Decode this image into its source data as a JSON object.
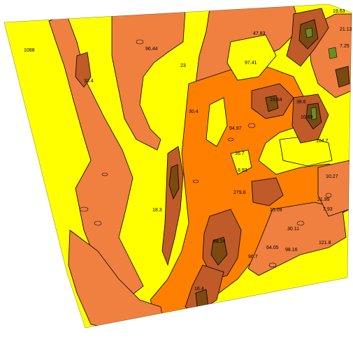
{
  "colors": {
    "background": "#ffffff",
    "low": "#ffff00",
    "mid": "#f08040",
    "high": "#ff7f00",
    "higher": "#c05a28",
    "peak": "#7a4a10",
    "accent_green": "#6b8e23",
    "contour": "#000000"
  },
  "contour_labels": [
    "1088",
    "96.44",
    "33.4",
    "23",
    "47.83",
    "97.41",
    "19.63",
    "21.13",
    "7.25",
    "30.4",
    "94.97",
    "16.7",
    "8.93",
    "279.8",
    "10.69",
    "104.7",
    "19.64",
    "38.6",
    "10.27",
    "21.99",
    "7.93",
    "15.09",
    "30.11",
    "18.3",
    "68.24",
    "64.05",
    "98.16",
    "121.8",
    "96.7",
    "16.4"
  ]
}
